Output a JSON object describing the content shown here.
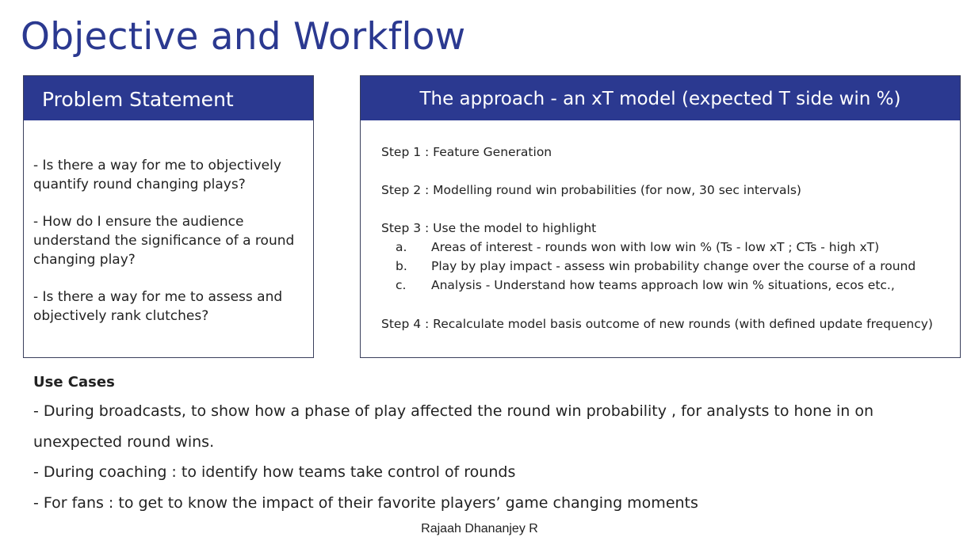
{
  "title": "Objective and Workflow",
  "problem_statement": {
    "header": "Problem Statement",
    "items": [
      "- Is there a way for me to objectively quantify round changing plays?",
      "- How do I ensure the audience understand the significance of a round changing play?",
      "- Is there a way for me to assess and objectively rank clutches?"
    ]
  },
  "approach": {
    "header": "The approach - an xT model (expected T side win %)",
    "steps": [
      "Step 1 : Feature Generation",
      "Step 2 : Modelling round win probabilities (for now, 30 sec intervals)",
      "Step 3 : Use the model to highlight",
      "Step 4 : Recalculate model basis outcome of new rounds (with defined update frequency)"
    ],
    "sub_items": [
      {
        "marker": "a.",
        "text": "Areas of interest - rounds won with low win % (Ts - low xT ; CTs - high xT)"
      },
      {
        "marker": "b.",
        "text": "Play by play impact - assess win probability change over the course of a round"
      },
      {
        "marker": "c.",
        "text": "Analysis - Understand how teams approach low win % situations, ecos etc.,"
      }
    ]
  },
  "use_cases": {
    "title": "Use Cases",
    "lines": [
      "- During broadcasts, to show how a phase of play affected the round win probability , for analysts to hone in on",
      "unexpected round wins.",
      "- During coaching : to identify how teams take control of rounds",
      "- For fans : to get to know the impact of their favorite players’ game changing moments"
    ]
  },
  "author": "Rajaah Dhananjey R",
  "colors": {
    "accent": "#2b3990",
    "header_text": "#ffffff",
    "border": "#3a3f5c"
  }
}
